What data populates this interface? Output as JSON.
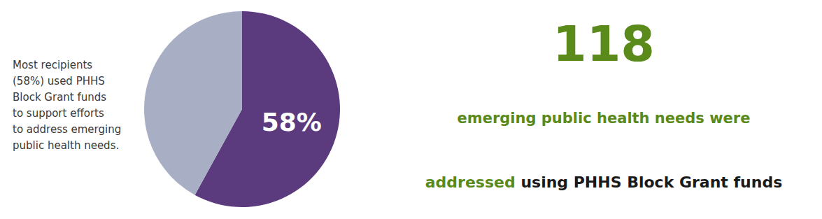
{
  "chart_data": {
    "type": "pie",
    "values": [
      58,
      42
    ],
    "colors": [
      "#5b3a7e",
      "#a8afc4"
    ],
    "data_labels": true,
    "value_labels": [
      "58%",
      null
    ],
    "legend": false,
    "annotations": [
      {
        "parts": [
          {
            "text": "Most recipients\n(58%) used PHHS\nBlock Grant funds\nto support efforts\nto address emerging\npublic health needs.",
            "color": "#3a3a3a"
          }
        ]
      },
      {
        "parts": [
          {
            "text": "118",
            "color": "#5a8a1a"
          }
        ]
      },
      {
        "parts": [
          {
            "text": "emerging public health needs were",
            "color": "#5a8a1a"
          }
        ]
      },
      {
        "parts": [
          {
            "text": "addressed",
            "color": "#5a8a1a"
          },
          {
            "text": " using PHHS Block Grant funds",
            "color": "#1a1a1a"
          }
        ]
      }
    ]
  }
}
